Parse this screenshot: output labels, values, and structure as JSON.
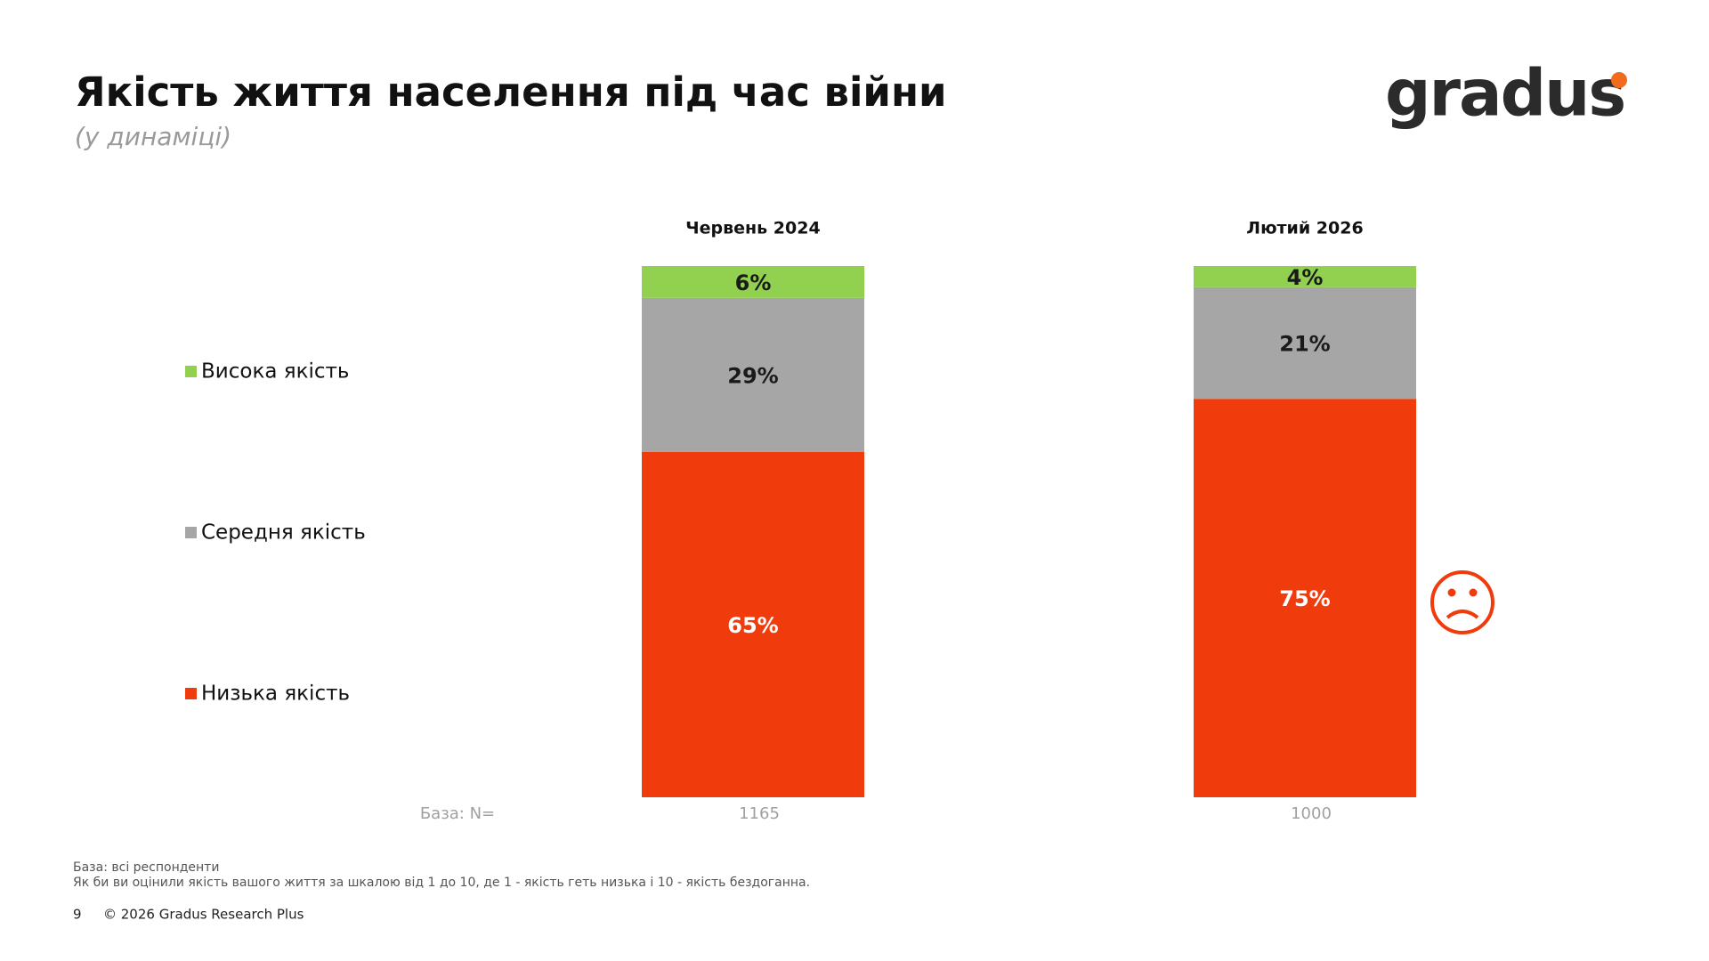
{
  "chart_data": {
    "type": "stacked_bar",
    "title": "Якість життя населення під час війни",
    "subtitle": "(у динаміці)",
    "logo": "gradus",
    "categories": [
      "Червень 2024",
      "Лютий 2026"
    ],
    "series": [
      {
        "name": "Низька якість",
        "color": "#f03c0c",
        "values": [
          65,
          75
        ],
        "value_labels": [
          "65%",
          "75%"
        ],
        "label_color": "#ffffff"
      },
      {
        "name": "Середня якість",
        "color": "#a6a6a6",
        "values": [
          29,
          21
        ],
        "value_labels": [
          "29%",
          "21%"
        ],
        "label_color": "#1a1a1a"
      },
      {
        "name": "Висока якість",
        "color": "#92d050",
        "values": [
          6,
          4
        ],
        "value_labels": [
          "6%",
          "4%"
        ],
        "label_color": "#1a1a1a"
      }
    ],
    "base_label": "База: N=",
    "base_n": [
      1165,
      1000
    ],
    "footnotes": [
      "База: всі респонденти",
      "Як би ви оцінили якість вашого життя за шкалою від 1 до 10, де 1 - якість геть низька і 10 - якість бездоганна."
    ],
    "page_number": 9,
    "copyright": "© 2026 Gradus Research Plus"
  }
}
